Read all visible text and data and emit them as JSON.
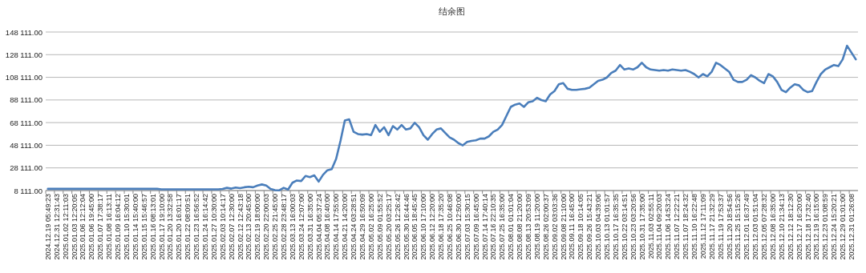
{
  "chart_data": {
    "type": "line",
    "title": "结余图",
    "categories": [
      "2024.12.19 05:49:23",
      null,
      "2024.12.31 12:31:43",
      null,
      "2025.01.02 12:11:03",
      null,
      "2025.01.03 12:20:05",
      null,
      "2025.01.06 12:12:04",
      null,
      "2025.01.06 19:45:00",
      null,
      "2025.01.07 17:38:17",
      null,
      "2025.01.08 16:13:11",
      null,
      "2025.01.09 16:04:12",
      null,
      "2025.01.10 15:30:01",
      null,
      "2025.01.14 15:40:00",
      null,
      "2025.01.15 15:46:57",
      null,
      "2025.01.16 08:13:01",
      null,
      "2025.01.17 19:10:00",
      null,
      "2025.01.20 13:32:58",
      null,
      "2025.01.20 16:01:17",
      null,
      "2025.01.22 08:09:51",
      null,
      "2025.01.23 16:56:52",
      null,
      "2025.01.24 16:14:42",
      null,
      "2025.01.27 10:30:00",
      null,
      "2025.02.03 10:14:17",
      null,
      "2025.02.07 12:30:00",
      null,
      "2025.02.12 12:43:18",
      null,
      "2025.02.13 20:45:00",
      null,
      "2025.02.19 18:00:00",
      null,
      "2025.02.20 22:00:03",
      null,
      "2025.02.25 21:45:00",
      null,
      "2025.02.28 23:48:17",
      null,
      "2025.03.13 16:00:03",
      null,
      "2025.03.24 12:07:00",
      null,
      "2025.03.31 16:35:00",
      null,
      "2025.04.04 05:37:24",
      null,
      "2025.04.08 16:40:00",
      null,
      "2025.04.14 17:55:00",
      null,
      "2025.04.21 14:20:00",
      null,
      "2025.04.24 03:28:51",
      null,
      "2025.04.29 16:50:09",
      null,
      "2025.05.02 16:25:00",
      null,
      "2025.05.09 01:55:52",
      null,
      "2025.05.20 03:25:17",
      null,
      "2025.05.26 12:26:42",
      null,
      "2025.05.30 16:44:46",
      null,
      "2025.06.05 18:45:45",
      null,
      "2025.06.10 17:10:00",
      null,
      "2025.06.12 12:20:00",
      null,
      "2025.06.18 17:35:20",
      null,
      "2025.06.25 10:46:08",
      null,
      "2025.06.30 12:50:00",
      null,
      "2025.07.03 15:30:15",
      null,
      "2025.07.09 16:45:00",
      null,
      "2025.07.14 17:40:14",
      null,
      "2025.07.16 22:10:35",
      null,
      "2025.07.25 16:35:00",
      null,
      "2025.08.01 01:01:04",
      null,
      "2025.08.08 21:20:00",
      null,
      "2025.08.13 20:53:09",
      null,
      "2025.08.19 11:20:00",
      null,
      "2025.08.26 02:00:37",
      null,
      "2025.09.02 03:03:36",
      null,
      "2025.09.08 21:10:00",
      null,
      "2025.09.11 16:45:00",
      null,
      "2025.09.18 10:14:05",
      null,
      "2025.09.26 15:43:21",
      null,
      "2025.10.03 04:39:06",
      null,
      "2025.10.13 01:01:57",
      null,
      "2025.10.17 16:35:35",
      null,
      "2025.10.22 03:14:51",
      null,
      "2025.10.23 03:20:56",
      null,
      "2025.10.31 17:35:00",
      null,
      "2025.11.03 02:55:11",
      null,
      "2025.11.04 09:20:03",
      null,
      "2025.11.06 14:53:24",
      null,
      "2025.11.07 12:22:21",
      null,
      "2025.11.07 18:24:32",
      null,
      "2025.11.10 16:22:48",
      null,
      "2025.11.12 17:11:09",
      null,
      "2025.11.17 21:32:29",
      null,
      "2025.11.19 17:53:37",
      null,
      "2025.11.20 18:54:56",
      null,
      "2025.11.25 15:15:26",
      null,
      "2025.12.01 16:37:49",
      null,
      "2025.12.03 01:51:04",
      null,
      "2025.12.05 07:28:32",
      null,
      "2025.12.08 16:35:00",
      null,
      "2025.12.10 21:34:13",
      null,
      "2025.12.12 18:12:30",
      null,
      "2025.12.17 16:20:00",
      null,
      "2025.12.18 17:32:40",
      null,
      "2025.12.19 16:15:00",
      null,
      "2025.12.23 01:08:59",
      null,
      "2025.12.24 15:20:21",
      null,
      "2025.12.29 01:01:00",
      null,
      "2025.12.31 01:26:08",
      null
    ],
    "values": [
      9600,
      9600,
      9600,
      9600,
      9600,
      9600,
      9600,
      9600,
      9600,
      9600,
      9600,
      9600,
      9600,
      9600,
      9600,
      9600,
      9600,
      9600,
      9600,
      9600,
      9600,
      9600,
      9600,
      9600,
      9600,
      9600,
      9200,
      9200,
      9200,
      9200,
      9200,
      9200,
      9200,
      9200,
      9200,
      9200,
      9200,
      9200,
      9200,
      9200,
      9500,
      10500,
      9800,
      10800,
      10200,
      11000,
      11500,
      11000,
      12500,
      13500,
      12500,
      9500,
      8500,
      8300,
      10500,
      9000,
      15000,
      17000,
      16500,
      21000,
      20000,
      21500,
      16000,
      22000,
      26000,
      27000,
      36000,
      52000,
      70000,
      71000,
      60000,
      58000,
      57500,
      58000,
      57000,
      66000,
      60000,
      64000,
      57000,
      65000,
      62000,
      66000,
      62000,
      63000,
      68000,
      64000,
      57000,
      53000,
      58000,
      62000,
      63000,
      59000,
      55000,
      53000,
      50000,
      48000,
      51000,
      52000,
      52500,
      54000,
      54000,
      56000,
      60000,
      62000,
      66000,
      74000,
      82000,
      84000,
      85000,
      82000,
      86000,
      87000,
      90000,
      88000,
      87000,
      93000,
      96000,
      102000,
      103000,
      98000,
      97000,
      97000,
      97500,
      98000,
      99000,
      102000,
      105000,
      106000,
      108000,
      112000,
      114000,
      119000,
      115000,
      116000,
      115000,
      117000,
      121000,
      117000,
      115000,
      114500,
      114000,
      114500,
      114000,
      115000,
      114500,
      114000,
      114500,
      113000,
      111000,
      108000,
      111000,
      109000,
      113000,
      121000,
      119000,
      116000,
      113000,
      106000,
      104000,
      104000,
      106000,
      110000,
      108000,
      105000,
      103000,
      111000,
      109000,
      104000,
      97000,
      95000,
      99000,
      102000,
      101000,
      97000,
      95000,
      96000,
      104000,
      111000,
      115000,
      117000,
      119000,
      118000,
      124000,
      136000,
      130000,
      124000
    ],
    "color": "#4a7ebb",
    "ylim": [
      8111,
      148111
    ],
    "yticks": [
      {
        "value": 8111,
        "label": "8 111.00"
      },
      {
        "value": 28111,
        "label": "28 111.00"
      },
      {
        "value": 48111,
        "label": "48 111.00"
      },
      {
        "value": 68111,
        "label": "68 111.00"
      },
      {
        "value": 88111,
        "label": "88 111.00"
      },
      {
        "value": 108111,
        "label": "108 111.00"
      },
      {
        "value": 128111,
        "label": "128 111.00"
      },
      {
        "value": 148111,
        "label": "148 111.00"
      }
    ],
    "grid": "y"
  }
}
